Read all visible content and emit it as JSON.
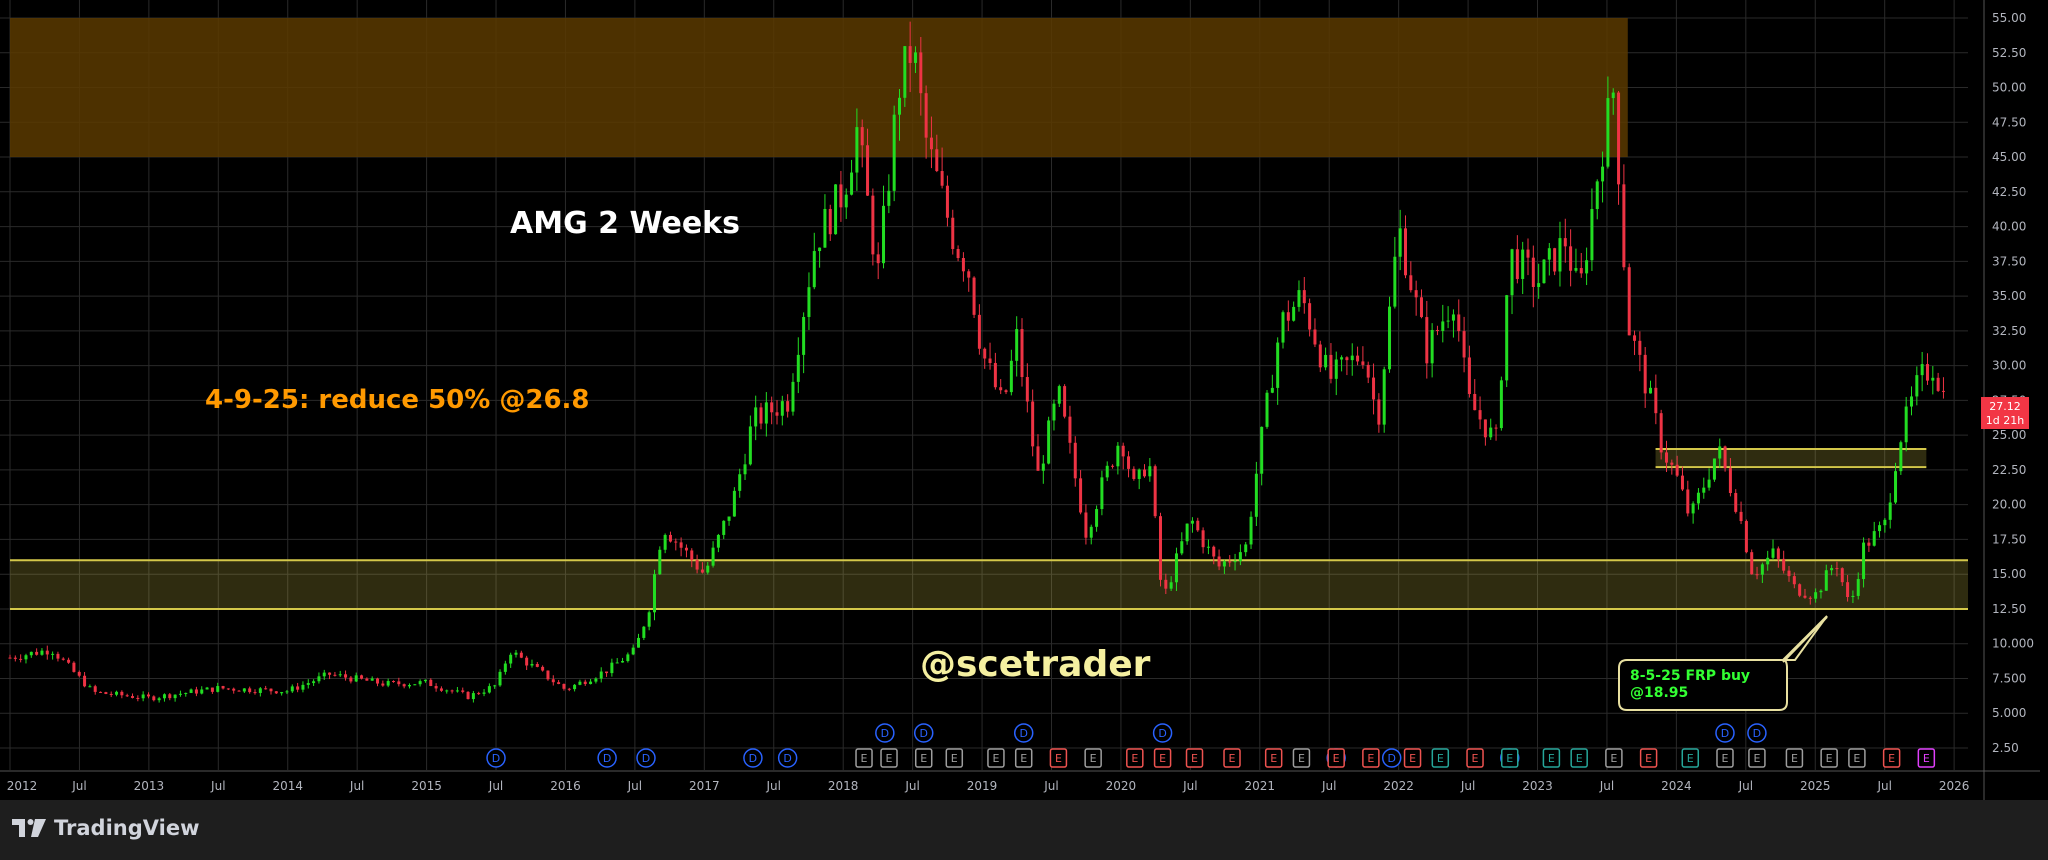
{
  "colors": {
    "background": "#000000",
    "grid": "#2a2a2a",
    "up": "#22dd22",
    "down": "#ee3344",
    "resistance_zone": "#5a3a00",
    "support_zone": "#d4c84a",
    "title_text": "#ffffff",
    "note_text": "#ff9900",
    "watermark_text": "#f5f0a0",
    "callout_text": "#33ff33",
    "callout_border": "#e8e0a0",
    "price_label_bg": "#f23645",
    "axis_text": "#b2b5be",
    "dividend": "#2962ff",
    "earnings_neutral": "#9e9e9e",
    "earnings_miss": "#ef5350",
    "earnings_beat": "#26a69a",
    "earnings_upcoming": "#e040fb"
  },
  "chart_data": {
    "type": "candlestick",
    "symbol": "AMG",
    "title": "AMG 2 Weeks",
    "interval": "2 Weeks",
    "x": [
      "2012",
      "Jul",
      "2013",
      "Jul",
      "2014",
      "Jul",
      "2015",
      "Jul",
      "2016",
      "Jul",
      "2017",
      "Jul",
      "2018",
      "Jul",
      "2019",
      "Jul",
      "2020",
      "Jul",
      "2021",
      "Jul",
      "2022",
      "Jul",
      "2023",
      "Jul",
      "2024",
      "Jul",
      "2025",
      "Jul",
      "2026"
    ],
    "y_ticks": [
      "2.50",
      "5.000",
      "7.500",
      "10.000",
      "12.50",
      "15.00",
      "17.50",
      "20.00",
      "22.50",
      "25.00",
      "27.50",
      "30.00",
      "32.50",
      "35.00",
      "37.50",
      "40.00",
      "42.50",
      "45.00",
      "47.50",
      "50.00",
      "52.50",
      "55.00"
    ],
    "ylim": [
      0.5,
      56
    ],
    "price_path": [
      [
        2012.0,
        9.0
      ],
      [
        2012.3,
        9.6
      ],
      [
        2012.6,
        6.5
      ],
      [
        2013.0,
        6.1
      ],
      [
        2013.5,
        6.8
      ],
      [
        2014.0,
        6.6
      ],
      [
        2014.3,
        7.8
      ],
      [
        2014.7,
        7.1
      ],
      [
        2015.0,
        7.2
      ],
      [
        2015.3,
        6.2
      ],
      [
        2015.5,
        7.0
      ],
      [
        2015.6,
        9.5
      ],
      [
        2016.0,
        6.7
      ],
      [
        2016.3,
        8.1
      ],
      [
        2016.5,
        9.5
      ],
      [
        2016.6,
        12.5
      ],
      [
        2016.7,
        18.5
      ],
      [
        2017.0,
        15.0
      ],
      [
        2017.2,
        20.0
      ],
      [
        2017.35,
        26.0
      ],
      [
        2017.6,
        27.5
      ],
      [
        2017.8,
        39.0
      ],
      [
        2018.0,
        42.5
      ],
      [
        2018.1,
        47.0
      ],
      [
        2018.25,
        36.5
      ],
      [
        2018.4,
        50.0
      ],
      [
        2018.5,
        53.0
      ],
      [
        2018.6,
        46.0
      ],
      [
        2018.8,
        39.0
      ],
      [
        2018.9,
        37.0
      ],
      [
        2019.0,
        31.0
      ],
      [
        2019.15,
        27.0
      ],
      [
        2019.25,
        32.0
      ],
      [
        2019.4,
        22.0
      ],
      [
        2019.55,
        28.0
      ],
      [
        2019.75,
        18.0
      ],
      [
        2019.85,
        21.0
      ],
      [
        2020.0,
        25.0
      ],
      [
        2020.1,
        21.0
      ],
      [
        2020.2,
        23.5
      ],
      [
        2020.3,
        13.0
      ],
      [
        2020.5,
        19.0
      ],
      [
        2020.7,
        15.5
      ],
      [
        2020.9,
        17.0
      ],
      [
        2021.0,
        24.0
      ],
      [
        2021.15,
        33.0
      ],
      [
        2021.3,
        35.0
      ],
      [
        2021.5,
        29.0
      ],
      [
        2021.75,
        31.0
      ],
      [
        2021.85,
        26.0
      ],
      [
        2022.0,
        40.0
      ],
      [
        2022.2,
        31.0
      ],
      [
        2022.4,
        35.0
      ],
      [
        2022.5,
        27.5
      ],
      [
        2022.7,
        24.5
      ],
      [
        2022.8,
        38.0
      ],
      [
        2023.0,
        36.0
      ],
      [
        2023.2,
        39.0
      ],
      [
        2023.3,
        35.0
      ],
      [
        2023.45,
        45.0
      ],
      [
        2023.55,
        50.0
      ],
      [
        2023.65,
        33.0
      ],
      [
        2023.8,
        28.0
      ],
      [
        2023.9,
        24.0
      ],
      [
        2024.0,
        22.0
      ],
      [
        2024.1,
        19.0
      ],
      [
        2024.3,
        24.0
      ],
      [
        2024.45,
        19.5
      ],
      [
        2024.55,
        15.0
      ],
      [
        2024.7,
        16.5
      ],
      [
        2024.85,
        14.0
      ],
      [
        2025.0,
        13.5
      ],
      [
        2025.15,
        16.0
      ],
      [
        2025.25,
        12.5
      ],
      [
        2025.35,
        17.0
      ],
      [
        2025.5,
        18.5
      ],
      [
        2025.6,
        24.5
      ],
      [
        2025.75,
        29.0
      ],
      [
        2025.85,
        30.0
      ],
      [
        2025.95,
        27.12
      ]
    ],
    "last_price": "27.12",
    "last_price_countdown": "1d 21h",
    "zones": [
      {
        "type": "resistance",
        "from": 45.0,
        "to": 55.0,
        "x_start": 2012.0,
        "x_end": 2023.65
      },
      {
        "type": "support",
        "from": 12.5,
        "to": 16.0,
        "x_start": 2012.0,
        "x_end": 2026.1
      },
      {
        "type": "support",
        "from": 22.7,
        "to": 24.0,
        "x_start": 2023.85,
        "x_end": 2025.8
      }
    ],
    "annotations": {
      "title": "AMG 2 Weeks",
      "note": "4-9-25: reduce 50% @26.8",
      "watermark": "@scetrader",
      "callout_line1": "8-5-25 FRP buy",
      "callout_line2": "@18.95"
    },
    "dividend_markers": [
      {
        "x": 2015.5,
        "row": 2
      },
      {
        "x": 2016.3,
        "row": 2
      },
      {
        "x": 2016.58,
        "row": 2
      },
      {
        "x": 2017.35,
        "row": 2
      },
      {
        "x": 2017.6,
        "row": 2
      },
      {
        "x": 2018.3,
        "row": 1
      },
      {
        "x": 2018.58,
        "row": 1
      },
      {
        "x": 2019.3,
        "row": 1
      },
      {
        "x": 2020.3,
        "row": 1
      },
      {
        "x": 2021.55,
        "row": 2
      },
      {
        "x": 2021.95,
        "row": 2
      },
      {
        "x": 2022.8,
        "row": 2
      },
      {
        "x": 2024.35,
        "row": 1
      },
      {
        "x": 2024.58,
        "row": 1
      }
    ],
    "dividend_label": "D",
    "earnings_label": "E",
    "earnings_markers": [
      {
        "x": 2018.15,
        "kind": "neutral"
      },
      {
        "x": 2018.33,
        "kind": "neutral"
      },
      {
        "x": 2018.58,
        "kind": "neutral"
      },
      {
        "x": 2018.8,
        "kind": "neutral"
      },
      {
        "x": 2019.1,
        "kind": "neutral"
      },
      {
        "x": 2019.3,
        "kind": "neutral"
      },
      {
        "x": 2019.55,
        "kind": "miss"
      },
      {
        "x": 2019.8,
        "kind": "neutral"
      },
      {
        "x": 2020.1,
        "kind": "miss"
      },
      {
        "x": 2020.3,
        "kind": "miss"
      },
      {
        "x": 2020.53,
        "kind": "miss"
      },
      {
        "x": 2020.8,
        "kind": "miss"
      },
      {
        "x": 2021.1,
        "kind": "miss"
      },
      {
        "x": 2021.3,
        "kind": "neutral"
      },
      {
        "x": 2021.55,
        "kind": "miss"
      },
      {
        "x": 2021.8,
        "kind": "miss"
      },
      {
        "x": 2022.1,
        "kind": "miss"
      },
      {
        "x": 2022.3,
        "kind": "beat"
      },
      {
        "x": 2022.55,
        "kind": "miss"
      },
      {
        "x": 2022.8,
        "kind": "beat"
      },
      {
        "x": 2023.1,
        "kind": "beat"
      },
      {
        "x": 2023.3,
        "kind": "beat"
      },
      {
        "x": 2023.55,
        "kind": "neutral"
      },
      {
        "x": 2023.8,
        "kind": "miss"
      },
      {
        "x": 2024.1,
        "kind": "beat"
      },
      {
        "x": 2024.35,
        "kind": "neutral"
      },
      {
        "x": 2024.58,
        "kind": "neutral"
      },
      {
        "x": 2024.85,
        "kind": "neutral"
      },
      {
        "x": 2025.1,
        "kind": "neutral"
      },
      {
        "x": 2025.3,
        "kind": "neutral"
      },
      {
        "x": 2025.55,
        "kind": "miss"
      },
      {
        "x": 2025.8,
        "kind": "upcoming"
      }
    ]
  },
  "footer": {
    "brand": "TradingView",
    "logo_icon": "tradingview-logo-icon"
  }
}
